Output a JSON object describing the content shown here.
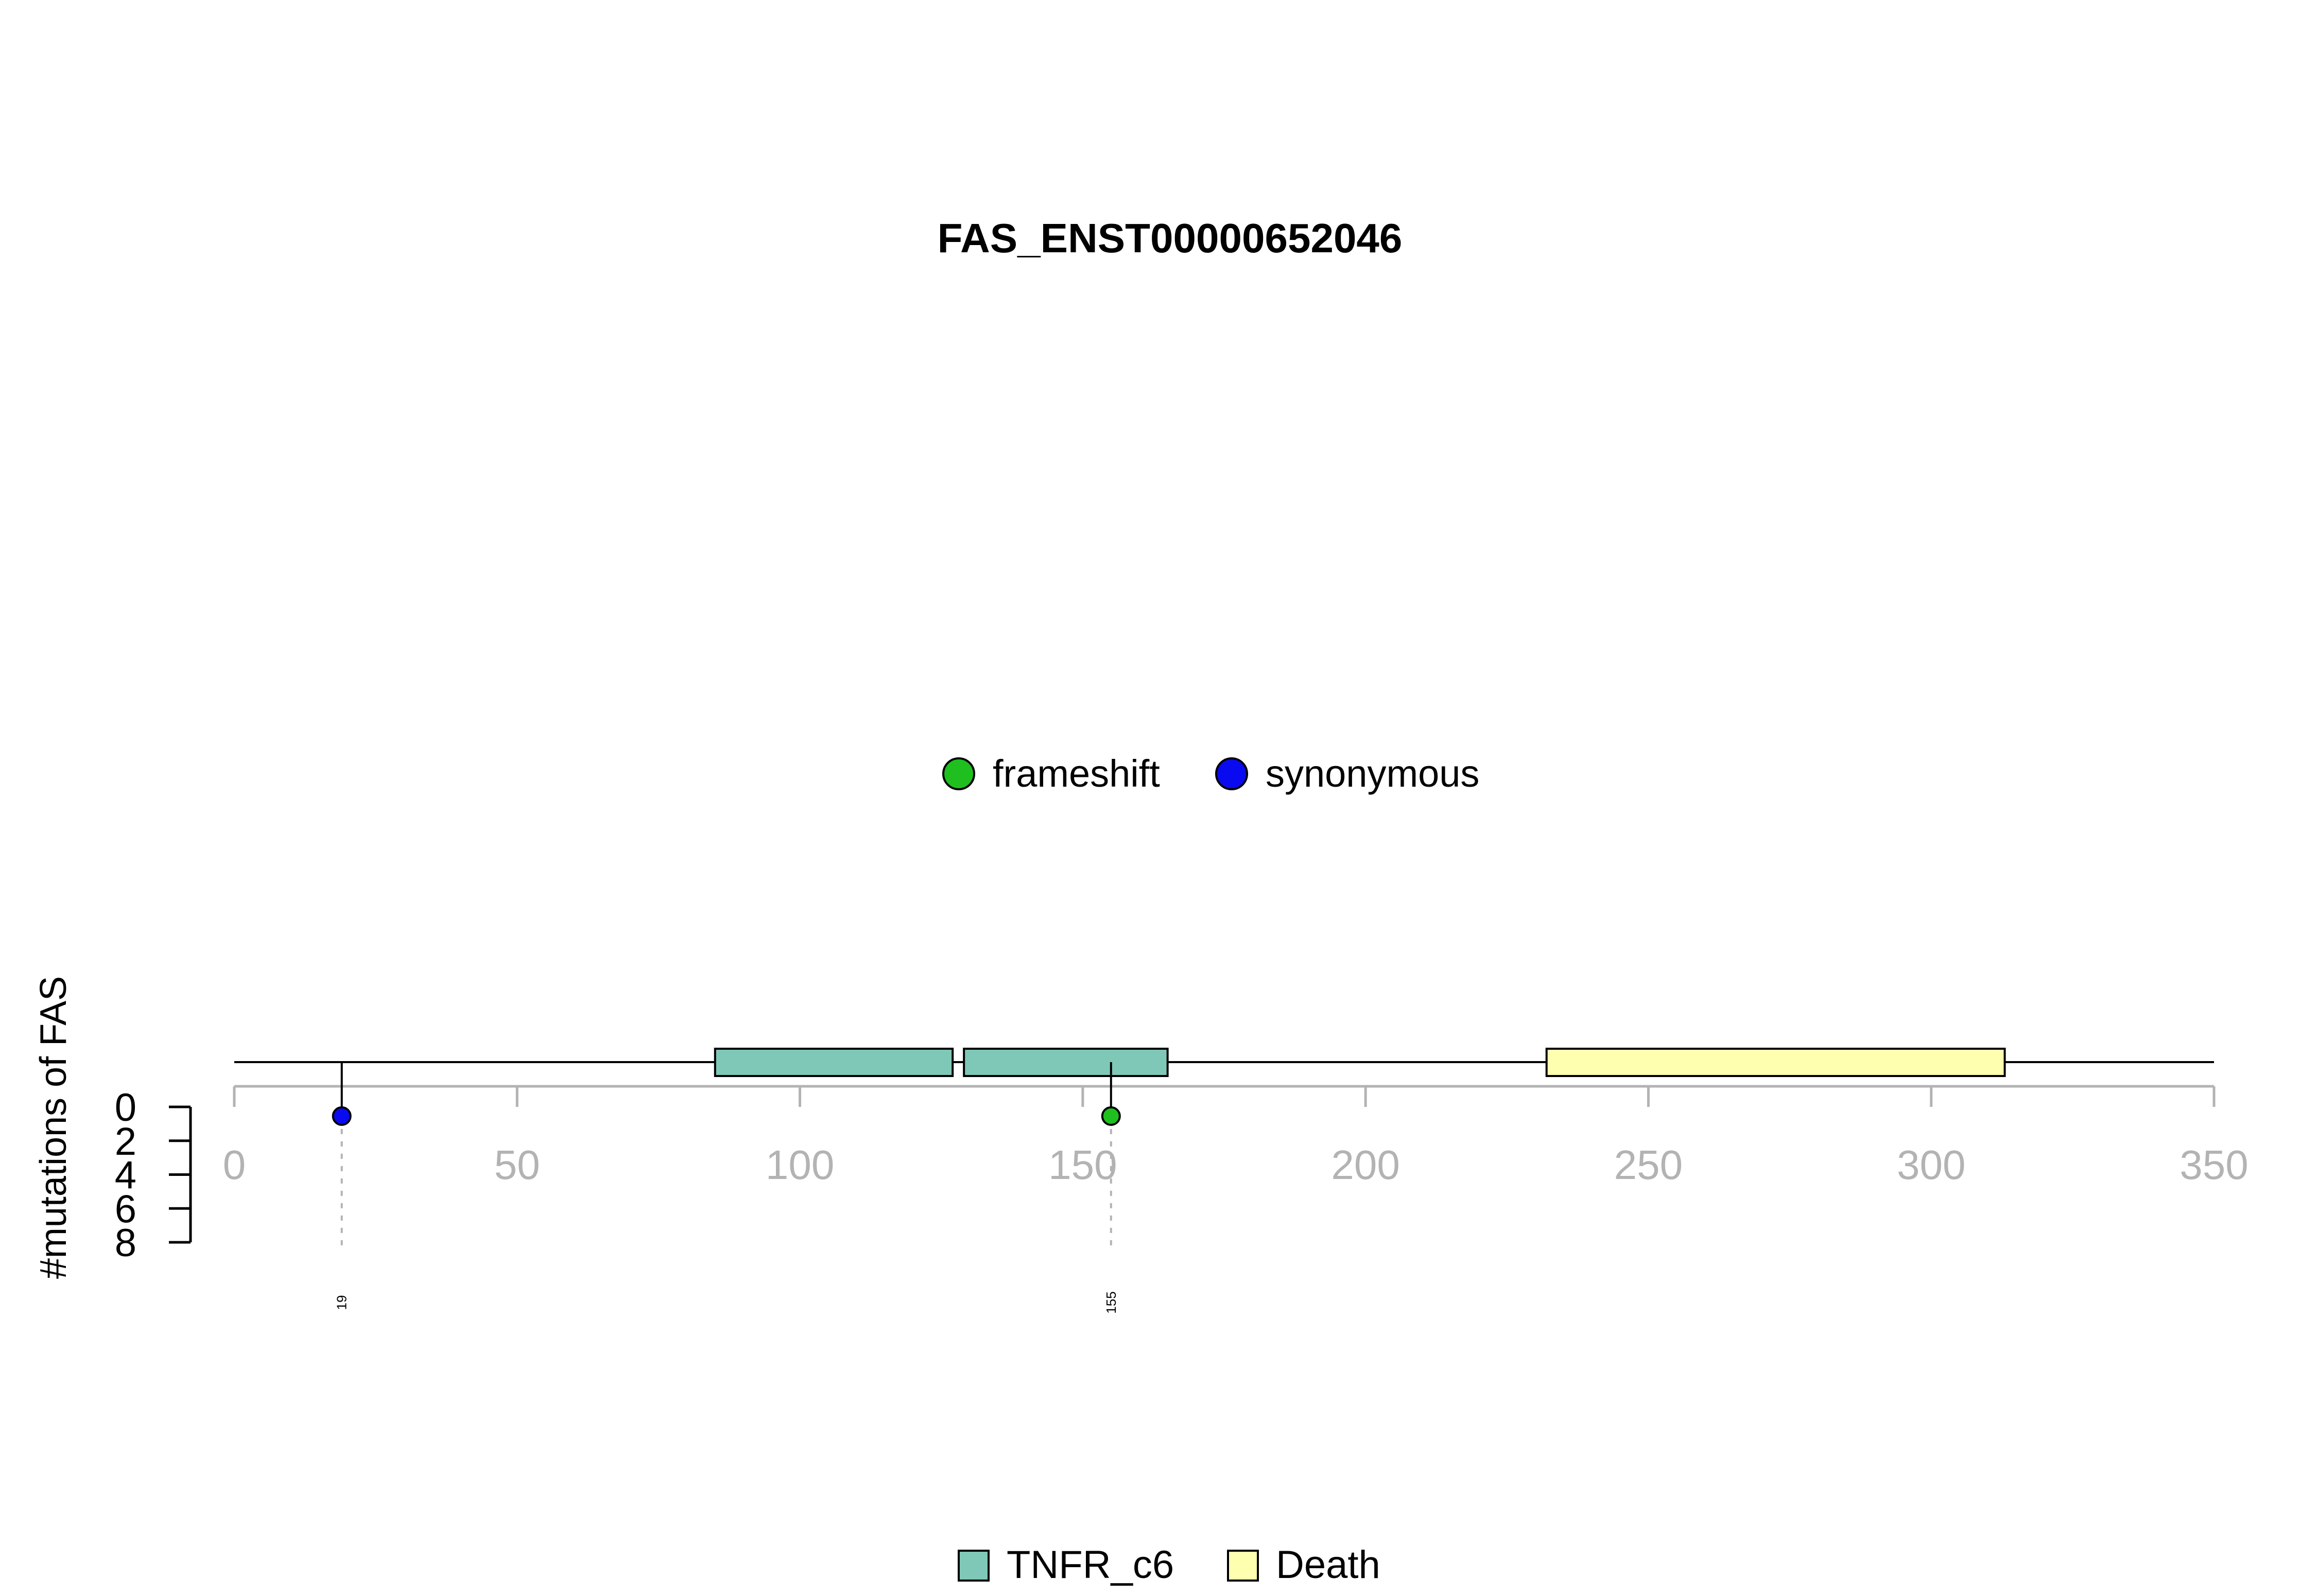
{
  "chart_data": {
    "type": "lollipop",
    "title": "FAS_ENST00000652046",
    "ylabel": "#mutations of FAS",
    "xlim": [
      0,
      350
    ],
    "x_ticks": [
      0,
      50,
      100,
      150,
      200,
      250,
      300,
      350
    ],
    "y_ticks": [
      0,
      2,
      4,
      6,
      8
    ],
    "ylim": [
      0,
      8
    ],
    "protein_length": 350,
    "domains": [
      {
        "name": "TNFR_c6",
        "start": 85,
        "end": 127,
        "color": "#7fc8b8"
      },
      {
        "name": "TNFR_c6",
        "start": 129,
        "end": 165,
        "color": "#7fc8b8"
      },
      {
        "name": "Death",
        "start": 232,
        "end": 313,
        "color": "#ffffb0"
      }
    ],
    "mutations": [
      {
        "position": 19,
        "count": 1,
        "type": "synonymous",
        "label": "19"
      },
      {
        "position": 155,
        "count": 1,
        "type": "frameshift",
        "label": "155"
      }
    ],
    "mutation_legend": [
      {
        "label": "frameshift",
        "color": "#1fbf1f"
      },
      {
        "label": "synonymous",
        "color": "#0a0af0"
      }
    ],
    "domain_legend": [
      {
        "label": "TNFR_c6",
        "color": "#7fc8b8"
      },
      {
        "label": "Death",
        "color": "#ffffb0"
      }
    ]
  }
}
